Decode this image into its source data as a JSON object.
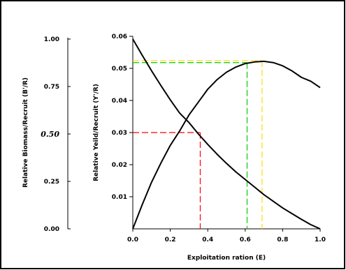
{
  "chart_data": {
    "type": "line",
    "xlabel": "Exploitation ration (E)",
    "ylabel": "Relative Yeild/Recruit (Y'/R)",
    "ylabel_secondary": "Relative Biomass/Recruit (B'/R)",
    "xlim": [
      0,
      1
    ],
    "ylim": [
      0,
      0.06
    ],
    "ylim_secondary": [
      0,
      1
    ],
    "x_ticks": [
      "0.0",
      "0.2",
      "0.4",
      "0.6",
      "0.8",
      "1.0"
    ],
    "y_ticks": [
      "0.01",
      "0.02",
      "0.03",
      "0.04",
      "0.05",
      "0.06"
    ],
    "y_ticks_secondary": [
      "0.00",
      "0.25",
      "0.50",
      "0.75",
      "1.00"
    ],
    "grid": false,
    "legend": "none",
    "series": [
      {
        "axis": "secondary",
        "color": "#000000",
        "x": [
          0.0,
          0.05,
          0.1,
          0.15,
          0.2,
          0.25,
          0.3,
          0.35,
          0.4,
          0.45,
          0.5,
          0.55,
          0.6,
          0.65,
          0.7,
          0.75,
          0.8,
          0.85,
          0.9,
          0.95,
          1.0
        ],
        "y": [
          1.0,
          0.915,
          0.833,
          0.755,
          0.68,
          0.61,
          0.56,
          0.5,
          0.445,
          0.393,
          0.345,
          0.3,
          0.26,
          0.22,
          0.18,
          0.145,
          0.11,
          0.08,
          0.05,
          0.022,
          0.0
        ]
      },
      {
        "axis": "primary",
        "color": "#000000",
        "x": [
          0.0,
          0.05,
          0.1,
          0.15,
          0.2,
          0.25,
          0.3,
          0.35,
          0.4,
          0.45,
          0.5,
          0.55,
          0.6,
          0.65,
          0.7,
          0.75,
          0.8,
          0.85,
          0.9,
          0.95,
          1.0
        ],
        "y": [
          0.0,
          0.0075,
          0.0145,
          0.0205,
          0.026,
          0.0305,
          0.0355,
          0.0395,
          0.0435,
          0.0465,
          0.0488,
          0.0504,
          0.0515,
          0.052,
          0.0522,
          0.0518,
          0.0508,
          0.0492,
          0.0472,
          0.046,
          0.044
        ]
      }
    ],
    "reference_points": [
      {
        "color": "#ff0000",
        "x": 0.36,
        "y": 0.03
      },
      {
        "color": "#00cc00",
        "x": 0.61,
        "y": 0.0518
      },
      {
        "color": "#ffdd00",
        "x": 0.69,
        "y": 0.0524
      }
    ]
  }
}
